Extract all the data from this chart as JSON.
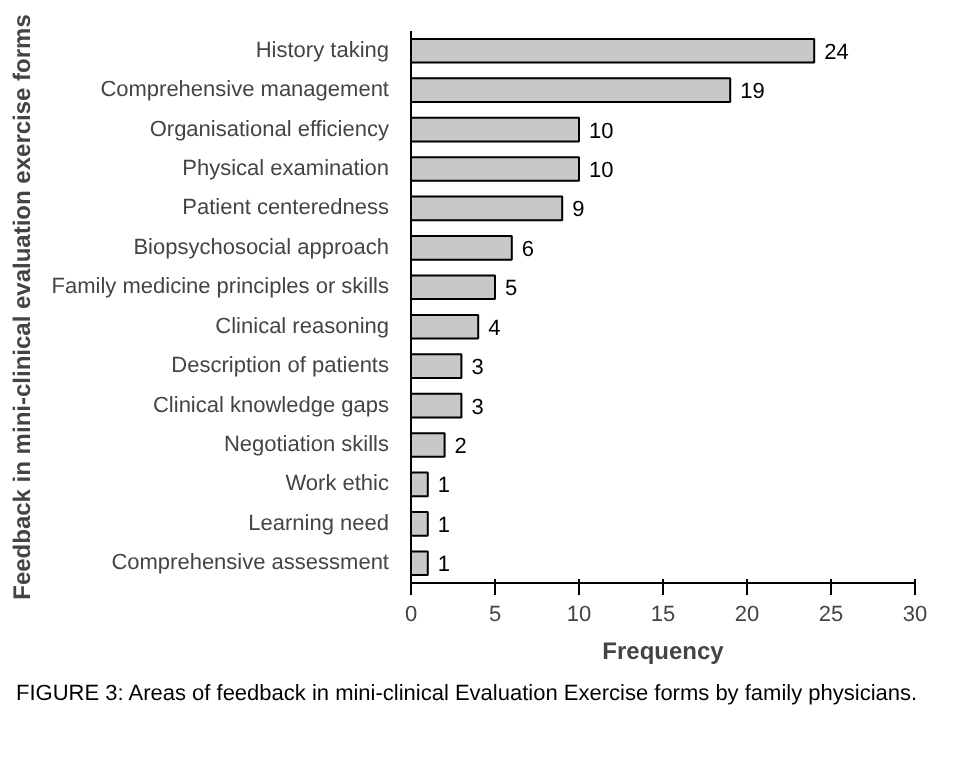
{
  "chart_data": {
    "type": "bar",
    "orientation": "horizontal",
    "xlabel": "Frequency",
    "ylabel": "Feedback in mini-clinical evaluation exercise forms",
    "categories": [
      "History taking",
      "Comprehensive management",
      "Organisational efficiency",
      "Physical examination",
      "Patient centeredness",
      "Biopsychosocial approach",
      "Family medicine principles or skills",
      "Clinical reasoning",
      "Description of patients",
      "Clinical knowledge gaps",
      "Negotiation skills",
      "Work ethic",
      "Learning need",
      "Comprehensive assessment"
    ],
    "values": [
      24,
      19,
      10,
      10,
      9,
      6,
      5,
      4,
      3,
      3,
      2,
      1,
      1,
      1
    ],
    "color": "#c8c8c8",
    "xlim": [
      0,
      30
    ],
    "xticks": [
      0,
      5,
      10,
      15,
      20,
      25,
      30
    ],
    "data_labels": true,
    "grid": false,
    "annotations": [
      "FIGURE 3: Areas of feedback in mini-clinical Evaluation Exercise forms by family physicians."
    ]
  }
}
